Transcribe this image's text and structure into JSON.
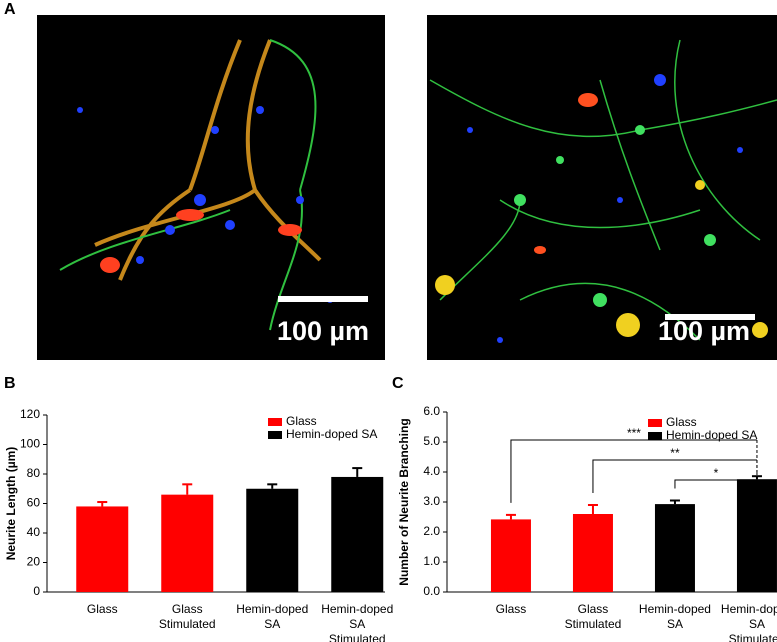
{
  "figure_labels": [
    "A",
    "B",
    "C"
  ],
  "scale_bar_labels": [
    "100 µm",
    "100 µm"
  ],
  "chart_data": [
    {
      "type": "bar",
      "y_label": "Neurite Length (µm)",
      "categories": [
        [
          "Glass"
        ],
        [
          "Glass",
          "Stimulated"
        ],
        [
          "Hemin-doped",
          "SA"
        ],
        [
          "Hemin-doped",
          "SA",
          "Stimulated"
        ]
      ],
      "values": [
        58,
        66,
        70,
        78
      ],
      "errors": [
        3,
        7,
        3,
        6
      ],
      "colors": [
        "#ff0000",
        "#ff0000",
        "#000000",
        "#000000"
      ],
      "legend": [
        {
          "name": "Glass",
          "color": "#ff0000"
        },
        {
          "name": "Hemin-doped SA",
          "color": "#000000"
        }
      ],
      "legend_position": "upper right",
      "ylim": [
        0,
        120
      ],
      "yticks": [
        0,
        20,
        40,
        60,
        80,
        100,
        120
      ]
    },
    {
      "type": "bar",
      "y_label": "Number of Neurite Branching",
      "categories": [
        [
          "Glass"
        ],
        [
          "Glass",
          "Stimulated"
        ],
        [
          "Hemin-doped",
          "SA"
        ],
        [
          "Hemin-doped",
          "SA",
          "Stimulated"
        ]
      ],
      "values": [
        2.42,
        2.6,
        2.93,
        3.76
      ],
      "errors": [
        0.15,
        0.3,
        0.12,
        0.1
      ],
      "colors": [
        "#ff0000",
        "#ff0000",
        "#000000",
        "#000000"
      ],
      "legend": [
        {
          "name": "Glass",
          "color": "#ff0000"
        },
        {
          "name": "Hemin-doped SA",
          "color": "#000000"
        }
      ],
      "legend_position": "upper right",
      "annotations": [
        "***",
        "**",
        "*"
      ],
      "ylim": [
        0,
        6
      ],
      "yticks": [
        {
          "value": 0,
          "label": "0.0"
        },
        {
          "value": 1,
          "label": "1.0"
        },
        {
          "value": 2,
          "label": "2.0"
        },
        {
          "value": 3,
          "label": "3.0"
        },
        {
          "value": 4,
          "label": "4.0"
        },
        {
          "value": 5,
          "label": "5.0"
        },
        {
          "value": 6,
          "label": "6.0"
        }
      ]
    }
  ]
}
